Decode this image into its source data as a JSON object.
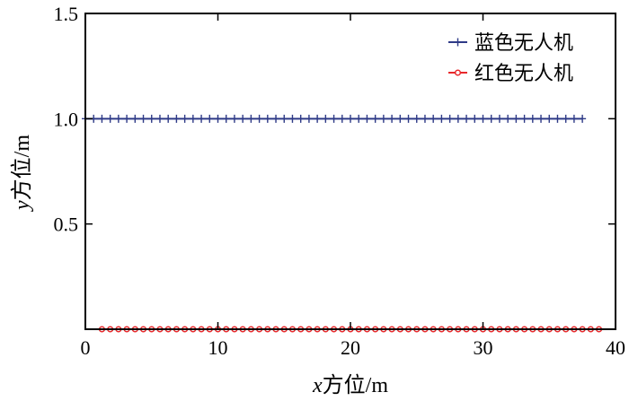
{
  "chart_data": {
    "type": "line",
    "title": "",
    "xlabel_italic": "x",
    "xlabel": "方位/m",
    "ylabel_italic": "y",
    "ylabel": "方位/m",
    "xlim": [
      0,
      40
    ],
    "ylim": [
      0,
      1.5
    ],
    "xticks": [
      "0",
      "10",
      "20",
      "30",
      "40"
    ],
    "xtick_values": [
      0,
      10,
      20,
      30,
      40
    ],
    "yticks": [
      "0.5",
      "1.0",
      "1.5"
    ],
    "ytick_values": [
      0.5,
      1.0,
      1.5
    ],
    "grid": false,
    "legend_position": "top-right",
    "series": [
      {
        "name": "蓝色无人机",
        "color": "#2e3a87",
        "marker": "plus",
        "x": [
          0,
          0.625,
          1.25,
          1.875,
          2.5,
          3.125,
          3.75,
          4.375,
          5,
          5.625,
          6.25,
          6.875,
          7.5,
          8.125,
          8.75,
          9.375,
          10,
          10.625,
          11.25,
          11.875,
          12.5,
          13.125,
          13.75,
          14.375,
          15,
          15.625,
          16.25,
          16.875,
          17.5,
          18.125,
          18.75,
          19.375,
          20,
          20.625,
          21.25,
          21.875,
          22.5,
          23.125,
          23.75,
          24.375,
          25,
          25.625,
          26.25,
          26.875,
          27.5,
          28.125,
          28.75,
          29.375,
          30,
          30.625,
          31.25,
          31.875,
          32.5,
          33.125,
          33.75,
          34.375,
          35,
          35.625,
          36.25,
          36.875,
          37.5
        ],
        "y_constant": 1.0
      },
      {
        "name": "红色无人机",
        "color": "#e8282b",
        "marker": "circle",
        "x": [
          1.25,
          1.875,
          2.5,
          3.125,
          3.75,
          4.375,
          5,
          5.625,
          6.25,
          6.875,
          7.5,
          8.125,
          8.75,
          9.375,
          10,
          10.625,
          11.25,
          11.875,
          12.5,
          13.125,
          13.75,
          14.375,
          15,
          15.625,
          16.25,
          16.875,
          17.5,
          18.125,
          18.75,
          19.375,
          20,
          20.625,
          21.25,
          21.875,
          22.5,
          23.125,
          23.75,
          24.375,
          25,
          25.625,
          26.25,
          26.875,
          27.5,
          28.125,
          28.75,
          29.375,
          30,
          30.625,
          31.25,
          31.875,
          32.5,
          33.125,
          33.75,
          34.375,
          35,
          35.625,
          36.25,
          36.875,
          37.5,
          38.125,
          38.75
        ],
        "y_constant": 0.0
      }
    ]
  }
}
